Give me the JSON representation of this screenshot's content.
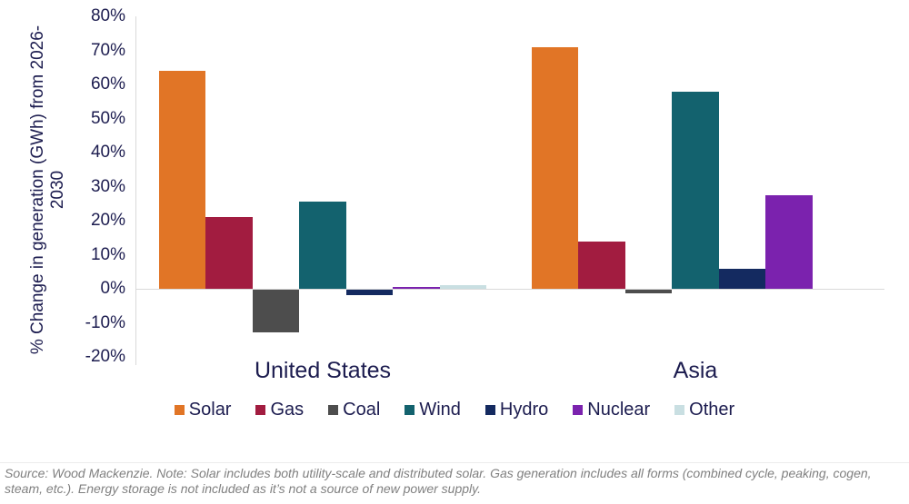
{
  "page": {
    "background": "#FFFFFF"
  },
  "chart_data": {
    "type": "bar",
    "ylabel": "% Change in generation (GWh) from 2026-2030",
    "ylabel_lines": [
      "% Change in generation (GWh) from 2026-",
      "2030"
    ],
    "ylim": [
      -20,
      80
    ],
    "yticks": [
      {
        "label": "80%",
        "value": 80
      },
      {
        "label": "70%",
        "value": 70
      },
      {
        "label": "60%",
        "value": 60
      },
      {
        "label": "50%",
        "value": 50
      },
      {
        "label": "40%",
        "value": 40
      },
      {
        "label": "30%",
        "value": 30
      },
      {
        "label": "20%",
        "value": 20
      },
      {
        "label": "10%",
        "value": 10
      },
      {
        "label": "0%",
        "value": 0
      },
      {
        "label": "-10%",
        "value": -10
      },
      {
        "label": "-20%",
        "value": -20
      }
    ],
    "categories": [
      "United States",
      "Asia"
    ],
    "series": [
      {
        "name": "Solar",
        "color": "#E17526",
        "values": [
          64,
          71
        ]
      },
      {
        "name": "Gas",
        "color": "#A21C40",
        "values": [
          21,
          14
        ]
      },
      {
        "name": "Coal",
        "color": "#4D4D4D",
        "values": [
          -12.5,
          -1
        ]
      },
      {
        "name": "Wind",
        "color": "#13626E",
        "values": [
          25.5,
          58
        ]
      },
      {
        "name": "Hydro",
        "color": "#142A60",
        "values": [
          -1.5,
          6
        ]
      },
      {
        "name": "Nuclear",
        "color": "#7B22AE",
        "values": [
          0.5,
          27.5
        ]
      },
      {
        "name": "Other",
        "color": "#C9DFE2",
        "values": [
          1,
          0
        ]
      }
    ],
    "grid": "zero-line-only",
    "legend_position": "bottom",
    "axis_text_color": "#1C1C4F",
    "gridline_color": "#D9D9D9"
  },
  "source": {
    "lines": [
      "Source: Wood Mackenzie. Note: Solar includes both utility-scale and distributed solar. Gas generation includes all forms (combined cycle, peaking, cogen,",
      "steam, etc.). Energy storage is not included as it’s not a source of new power supply."
    ]
  }
}
